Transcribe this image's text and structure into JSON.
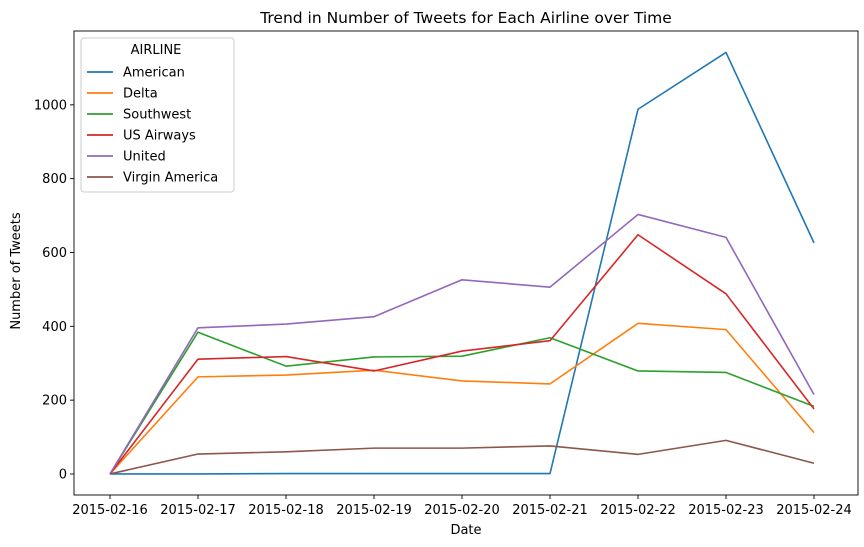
{
  "chart_data": {
    "type": "line",
    "title": "Trend in Number of Tweets for Each Airline over Time",
    "xlabel": "Date",
    "ylabel": "Number of Tweets",
    "x": [
      "2015-02-16",
      "2015-02-17",
      "2015-02-18",
      "2015-02-19",
      "2015-02-20",
      "2015-02-21",
      "2015-02-22",
      "2015-02-23",
      "2015-02-24"
    ],
    "ylim": [
      -57,
      1200
    ],
    "yticks": [
      0,
      200,
      400,
      600,
      800,
      1000
    ],
    "grid": false,
    "legend": {
      "title": "AIRLINE",
      "placement": "top-left"
    },
    "series": [
      {
        "name": "American",
        "color": "#1f77b4",
        "values": [
          0,
          0,
          1,
          1,
          1,
          1,
          988,
          1142,
          626
        ]
      },
      {
        "name": "Delta",
        "color": "#ff7f0e",
        "values": [
          0,
          263,
          268,
          281,
          252,
          244,
          408,
          391,
          112
        ]
      },
      {
        "name": "Southwest",
        "color": "#2ca02c",
        "values": [
          0,
          384,
          292,
          317,
          319,
          369,
          279,
          275,
          183
        ]
      },
      {
        "name": "US Airways",
        "color": "#d62728",
        "values": [
          0,
          311,
          318,
          279,
          333,
          361,
          648,
          488,
          176
        ]
      },
      {
        "name": "United",
        "color": "#9467bd",
        "values": [
          0,
          396,
          406,
          426,
          526,
          506,
          703,
          641,
          215
        ]
      },
      {
        "name": "Virgin America",
        "color": "#8c564b",
        "values": [
          0,
          54,
          60,
          70,
          70,
          76,
          53,
          91,
          29
        ]
      }
    ]
  }
}
